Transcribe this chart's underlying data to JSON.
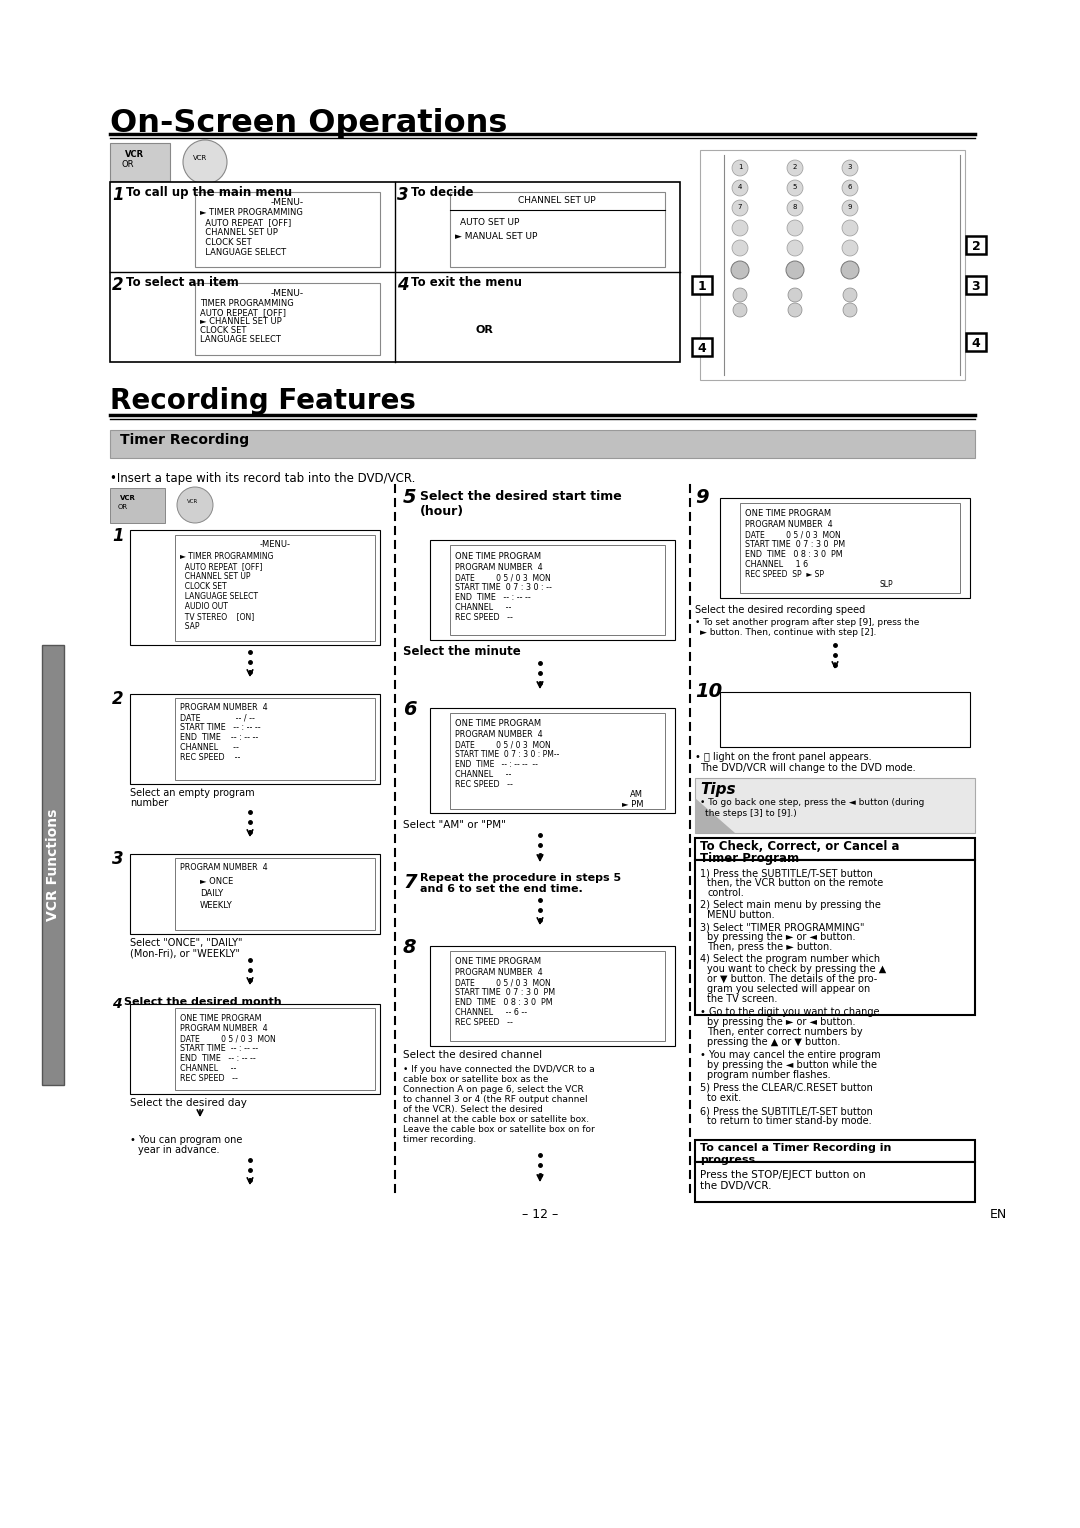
{
  "bg_color": "#ffffff",
  "title_main": "On-Screen Operations",
  "title_recording": "Recording Features",
  "section_timer": "Timer Recording",
  "insert_tape": "•Insert a tape with its record tab into the DVD/VCR.",
  "page_number": "– 12 –",
  "lang_label": "EN"
}
